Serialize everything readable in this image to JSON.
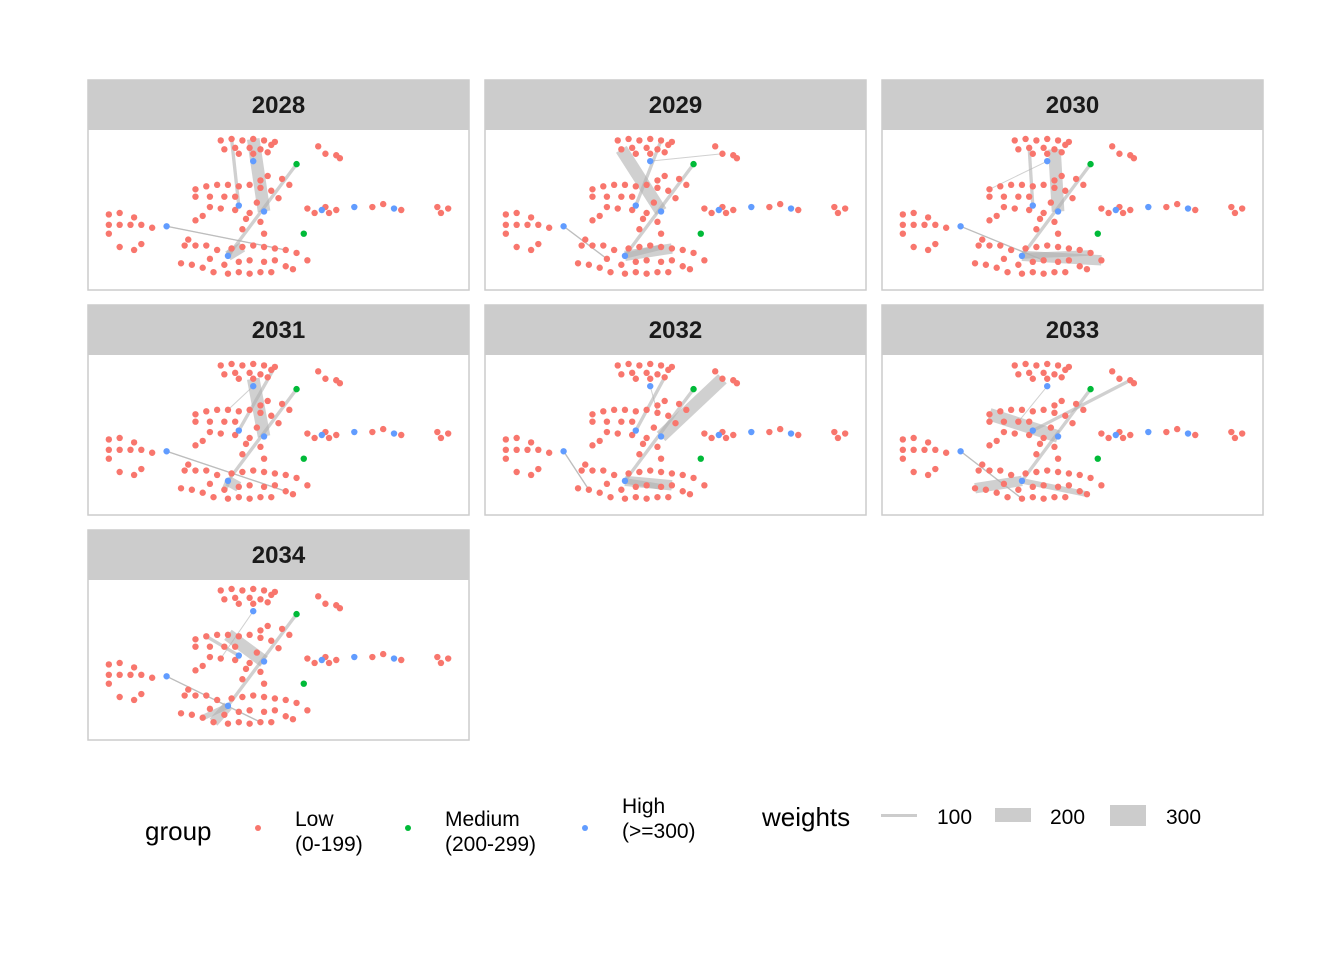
{
  "chart_data": {
    "type": "network-facets",
    "facets": [
      "2028",
      "2029",
      "2030",
      "2031",
      "2032",
      "2033",
      "2034"
    ],
    "legend": {
      "group": {
        "title": "group",
        "items": [
          {
            "key": "low",
            "line1": "Low",
            "line2": "(0-199)",
            "color": "#F8766D"
          },
          {
            "key": "medium",
            "line1": "Medium",
            "line2": "(200-299)",
            "color": "#00BA38"
          },
          {
            "key": "high",
            "line1": "High",
            "line2": "(>=300)",
            "color": "#619CFF"
          }
        ]
      },
      "weights": {
        "title": "weights",
        "items": [
          {
            "label": "100",
            "value": 100
          },
          {
            "label": "200",
            "value": 200
          },
          {
            "label": "300",
            "value": 300
          }
        ]
      }
    },
    "nodes_by_group": {
      "medium": [
        [
          0.55,
          0.19
        ],
        [
          0.57,
          0.66
        ]
      ],
      "high": [
        [
          0.43,
          0.17
        ],
        [
          0.19,
          0.61
        ],
        [
          0.39,
          0.47
        ],
        [
          0.46,
          0.51
        ],
        [
          0.62,
          0.5
        ],
        [
          0.82,
          0.49
        ],
        [
          0.71,
          0.48
        ],
        [
          0.36,
          0.81
        ]
      ],
      "low": [
        [
          0.34,
          0.03
        ],
        [
          0.37,
          0.02
        ],
        [
          0.4,
          0.03
        ],
        [
          0.43,
          0.02
        ],
        [
          0.46,
          0.03
        ],
        [
          0.48,
          0.06
        ],
        [
          0.35,
          0.09
        ],
        [
          0.38,
          0.08
        ],
        [
          0.42,
          0.08
        ],
        [
          0.45,
          0.09
        ],
        [
          0.49,
          0.04
        ],
        [
          0.39,
          0.12
        ],
        [
          0.43,
          0.12
        ],
        [
          0.47,
          0.11
        ],
        [
          0.61,
          0.07
        ],
        [
          0.63,
          0.12
        ],
        [
          0.66,
          0.13
        ],
        [
          0.67,
          0.15
        ],
        [
          0.27,
          0.36
        ],
        [
          0.3,
          0.34
        ],
        [
          0.33,
          0.33
        ],
        [
          0.36,
          0.33
        ],
        [
          0.39,
          0.34
        ],
        [
          0.42,
          0.33
        ],
        [
          0.45,
          0.35
        ],
        [
          0.27,
          0.41
        ],
        [
          0.31,
          0.41
        ],
        [
          0.35,
          0.41
        ],
        [
          0.38,
          0.41
        ],
        [
          0.31,
          0.48
        ],
        [
          0.34,
          0.49
        ],
        [
          0.38,
          0.5
        ],
        [
          0.42,
          0.52
        ],
        [
          0.45,
          0.3
        ],
        [
          0.47,
          0.27
        ],
        [
          0.51,
          0.29
        ],
        [
          0.53,
          0.33
        ],
        [
          0.48,
          0.37
        ],
        [
          0.5,
          0.42
        ],
        [
          0.44,
          0.45
        ],
        [
          0.41,
          0.56
        ],
        [
          0.45,
          0.58
        ],
        [
          0.4,
          0.63
        ],
        [
          0.46,
          0.66
        ],
        [
          0.29,
          0.54
        ],
        [
          0.27,
          0.57
        ],
        [
          0.25,
          0.7
        ],
        [
          0.24,
          0.74
        ],
        [
          0.27,
          0.74
        ],
        [
          0.3,
          0.74
        ],
        [
          0.33,
          0.77
        ],
        [
          0.37,
          0.76
        ],
        [
          0.4,
          0.75
        ],
        [
          0.43,
          0.74
        ],
        [
          0.46,
          0.75
        ],
        [
          0.49,
          0.76
        ],
        [
          0.52,
          0.77
        ],
        [
          0.55,
          0.79
        ],
        [
          0.58,
          0.84
        ],
        [
          0.31,
          0.83
        ],
        [
          0.35,
          0.87
        ],
        [
          0.39,
          0.85
        ],
        [
          0.42,
          0.84
        ],
        [
          0.46,
          0.85
        ],
        [
          0.49,
          0.84
        ],
        [
          0.52,
          0.88
        ],
        [
          0.54,
          0.9
        ],
        [
          0.23,
          0.86
        ],
        [
          0.26,
          0.87
        ],
        [
          0.29,
          0.89
        ],
        [
          0.32,
          0.92
        ],
        [
          0.36,
          0.93
        ],
        [
          0.39,
          0.92
        ],
        [
          0.42,
          0.93
        ],
        [
          0.45,
          0.92
        ],
        [
          0.48,
          0.92
        ],
        [
          0.03,
          0.53
        ],
        [
          0.06,
          0.52
        ],
        [
          0.1,
          0.55
        ],
        [
          0.03,
          0.6
        ],
        [
          0.06,
          0.6
        ],
        [
          0.09,
          0.6
        ],
        [
          0.03,
          0.66
        ],
        [
          0.06,
          0.75
        ],
        [
          0.1,
          0.77
        ],
        [
          0.12,
          0.73
        ],
        [
          0.12,
          0.6
        ],
        [
          0.15,
          0.62
        ],
        [
          0.58,
          0.49
        ],
        [
          0.6,
          0.52
        ],
        [
          0.63,
          0.48
        ],
        [
          0.64,
          0.52
        ],
        [
          0.66,
          0.5
        ],
        [
          0.76,
          0.48
        ],
        [
          0.79,
          0.46
        ],
        [
          0.84,
          0.5
        ],
        [
          0.94,
          0.48
        ],
        [
          0.95,
          0.52
        ],
        [
          0.97,
          0.49
        ]
      ]
    },
    "edges_by_facet": [
      [
        [
          0,
          1,
          12,
          1
        ],
        [
          1,
          7,
          56,
          1
        ],
        [
          1,
          3,
          56,
          2
        ],
        [
          7,
          2,
          100,
          4
        ],
        [
          2,
          3,
          100,
          1
        ],
        [
          3,
          4,
          300,
          1
        ],
        [
          7,
          4,
          150,
          1
        ],
        [
          7,
          3,
          250,
          2
        ]
      ],
      [
        [
          0,
          1,
          12,
          1
        ],
        [
          1,
          7,
          56,
          1
        ],
        [
          1,
          3,
          56,
          2
        ],
        [
          7,
          2,
          100,
          4
        ],
        [
          2,
          3,
          100,
          1
        ],
        [
          3,
          4,
          300,
          1
        ],
        [
          7,
          4,
          150,
          1
        ],
        [
          7,
          3,
          250,
          2
        ]
      ],
      [
        [
          0,
          1,
          12,
          1
        ],
        [
          1,
          7,
          56,
          1
        ],
        [
          1,
          3,
          56,
          2
        ],
        [
          7,
          2,
          100,
          4
        ],
        [
          2,
          3,
          100,
          1
        ],
        [
          3,
          4,
          300,
          1
        ],
        [
          7,
          4,
          150,
          1
        ],
        [
          7,
          3,
          250,
          2
        ]
      ],
      [
        [
          0,
          1,
          12,
          1
        ],
        [
          1,
          7,
          56,
          1
        ],
        [
          1,
          3,
          56,
          2
        ],
        [
          7,
          2,
          100,
          4
        ],
        [
          2,
          3,
          100,
          1
        ],
        [
          3,
          4,
          300,
          1
        ],
        [
          7,
          4,
          150,
          1
        ],
        [
          7,
          3,
          250,
          2
        ]
      ],
      [
        [
          0,
          1,
          12,
          1
        ],
        [
          1,
          7,
          56,
          1
        ],
        [
          1,
          3,
          56,
          2
        ],
        [
          7,
          2,
          100,
          4
        ],
        [
          2,
          3,
          100,
          1
        ],
        [
          3,
          4,
          300,
          1
        ],
        [
          7,
          4,
          150,
          1
        ],
        [
          7,
          3,
          250,
          2
        ]
      ],
      [
        [
          0,
          1,
          12,
          1
        ],
        [
          1,
          7,
          56,
          1
        ],
        [
          1,
          3,
          56,
          2
        ],
        [
          7,
          2,
          100,
          4
        ],
        [
          2,
          3,
          100,
          1
        ],
        [
          3,
          4,
          300,
          1
        ],
        [
          7,
          4,
          150,
          1
        ],
        [
          7,
          3,
          250,
          2
        ]
      ],
      [
        [
          0,
          1,
          12,
          1
        ],
        [
          1,
          7,
          56,
          1
        ],
        [
          1,
          3,
          56,
          2
        ],
        [
          7,
          2,
          100,
          4
        ],
        [
          2,
          3,
          100,
          1
        ],
        [
          3,
          4,
          300,
          1
        ],
        [
          7,
          4,
          150,
          1
        ],
        [
          7,
          3,
          250,
          2
        ]
      ]
    ],
    "edge_weight_range": [
      50,
      350
    ]
  }
}
